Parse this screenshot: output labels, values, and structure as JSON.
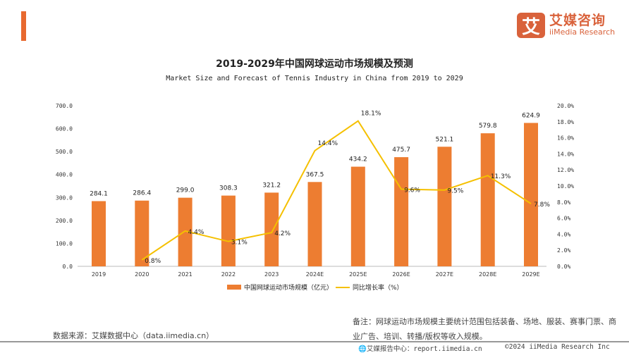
{
  "brand": {
    "logo_char": "艾",
    "name_cn": "艾媒咨询",
    "name_en": "iiMedia Research",
    "color": "#d9623b"
  },
  "chart_data": {
    "type": "bar+line",
    "title": "2019-2029年中国网球运动市场规模及预测",
    "subtitle": "Market Size and Forecast of Tennis Industry in China from 2019 to 2029",
    "categories": [
      "2019",
      "2020",
      "2021",
      "2022",
      "2023",
      "2024E",
      "2025E",
      "2026E",
      "2027E",
      "2028E",
      "2029E"
    ],
    "series": [
      {
        "name": "中国网球运动市场规模（亿元）",
        "type": "bar",
        "axis": "left",
        "color": "#ed7d31",
        "values": [
          284.1,
          286.4,
          299.0,
          308.3,
          321.2,
          367.5,
          434.2,
          475.7,
          521.1,
          579.8,
          624.9
        ],
        "labels": [
          "284.1",
          "286.4",
          "299.0",
          "308.3",
          "321.2",
          "367.5",
          "434.2",
          "475.7",
          "521.1",
          "579.8",
          "624.9"
        ]
      },
      {
        "name": "同比增长率（%）",
        "type": "line",
        "axis": "right",
        "color": "#f5c000",
        "values": [
          null,
          0.8,
          4.4,
          3.1,
          4.2,
          14.4,
          18.1,
          9.6,
          9.5,
          11.3,
          7.8
        ],
        "labels": [
          "",
          "0.8%",
          "4.4%",
          "3.1%",
          "4.2%",
          "14.4%",
          "18.1%",
          "9.6%",
          "9.5%",
          "11.3%",
          "7.8%"
        ]
      }
    ],
    "yleft": {
      "range": [
        0,
        700
      ],
      "ticks": [
        "0.0",
        "100.0",
        "200.0",
        "300.0",
        "400.0",
        "500.0",
        "600.0",
        "700.0"
      ]
    },
    "yright": {
      "range": [
        0,
        20
      ],
      "ticks": [
        "0.0%",
        "2.0%",
        "4.0%",
        "6.0%",
        "8.0%",
        "10.0%",
        "12.0%",
        "14.0%",
        "16.0%",
        "18.0%",
        "20.0%"
      ]
    },
    "grid": false,
    "legend": "bottom"
  },
  "footer": {
    "source": "数据来源：艾媒数据中心（data.iimedia.cn）",
    "note": "备注：网球运动市场规模主要统计范围包括装备、场地、服装、赛事门票、商业广告、培训、转播/版权等收入规模。",
    "report": "艾媒报告中心：report.iimedia.cn",
    "copyright": "©2024  iiMedia Research  Inc"
  }
}
